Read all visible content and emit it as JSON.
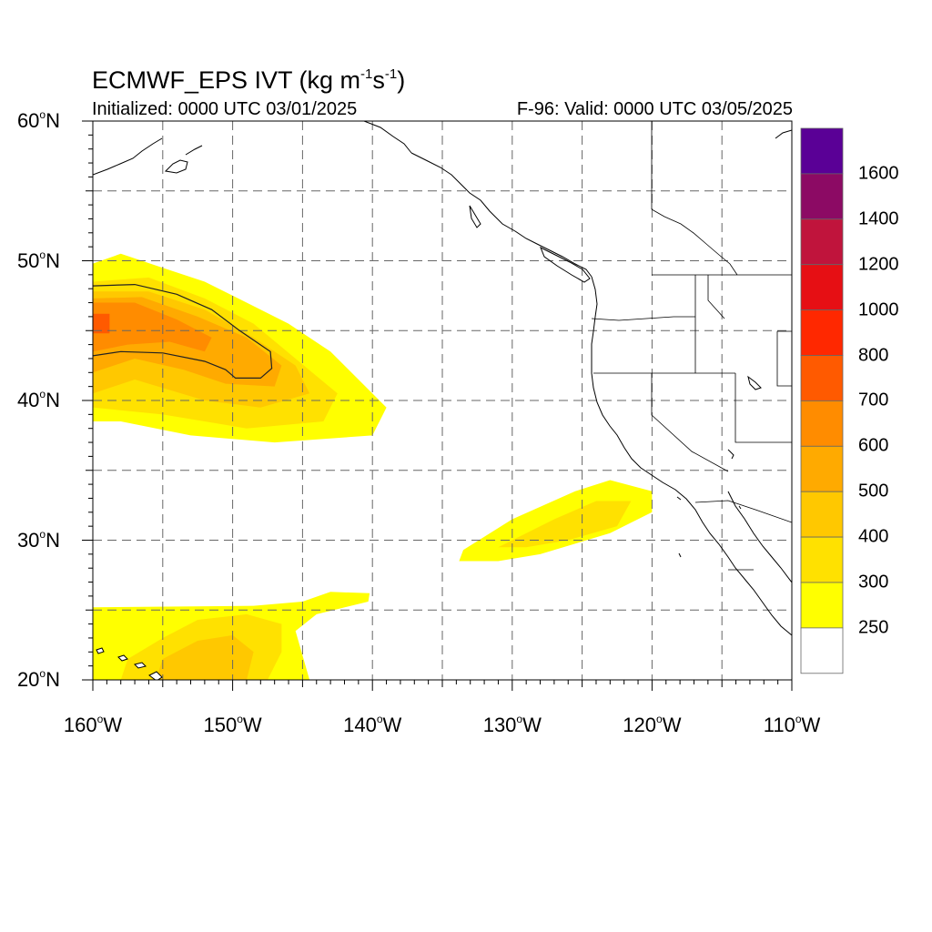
{
  "title": {
    "main": "ECMWF_EPS IVT (kg m",
    "sup1": "-1",
    "mid": "s",
    "sup2": "-1",
    "end": ")"
  },
  "initialized_text": "Initialized: 0000 UTC 03/01/2025",
  "valid_text": "F-96: Valid: 0000 UTC 03/05/2025",
  "map_extent": {
    "lon_min": -160,
    "lon_max": -110,
    "lat_min": 20,
    "lat_max": 60
  },
  "lat_ticks": [
    {
      "value": 60,
      "num": "60",
      "hemi": "N"
    },
    {
      "value": 50,
      "num": "50",
      "hemi": "N"
    },
    {
      "value": 40,
      "num": "40",
      "hemi": "N"
    },
    {
      "value": 30,
      "num": "30",
      "hemi": "N"
    },
    {
      "value": 20,
      "num": "20",
      "hemi": "N"
    }
  ],
  "lon_ticks": [
    {
      "value": -160,
      "num": "160",
      "hemi": "W"
    },
    {
      "value": -150,
      "num": "150",
      "hemi": "W"
    },
    {
      "value": -140,
      "num": "140",
      "hemi": "W"
    },
    {
      "value": -130,
      "num": "130",
      "hemi": "W"
    },
    {
      "value": -120,
      "num": "120",
      "hemi": "W"
    },
    {
      "value": -110,
      "num": "110",
      "hemi": "W"
    }
  ],
  "colorbar": {
    "levels": [
      250,
      300,
      400,
      500,
      600,
      700,
      800,
      1000,
      1200,
      1400,
      1600
    ],
    "labels": [
      "250",
      "300",
      "400",
      "500",
      "600",
      "700",
      "800",
      "1000",
      "1200",
      "1400",
      "1600"
    ],
    "colors": [
      "#ffffff",
      "#ffff00",
      "#ffe100",
      "#ffc800",
      "#ffaa00",
      "#ff8c00",
      "#ff5a00",
      "#ff2800",
      "#e60f14",
      "#c0143c",
      "#8c0a64",
      "#5a0096"
    ]
  },
  "chart_data": {
    "type": "heatmap",
    "variable": "IVT",
    "units": "kg m-1 s-1",
    "contour_line_level": 600,
    "ivt_regions": [
      {
        "description": "North Pacific atmospheric river",
        "bands": [
          {
            "min_ivt": 250,
            "polygon": [
              [
                -160,
                38.5
              ],
              [
                -160,
                49.8
              ],
              [
                -158,
                50.5
              ],
              [
                -155,
                49.5
              ],
              [
                -152,
                48.5
              ],
              [
                -149,
                47
              ],
              [
                -146,
                45.5
              ],
              [
                -143,
                43.5
              ],
              [
                -140.5,
                41
              ],
              [
                -139,
                39.5
              ],
              [
                -140,
                37.5
              ],
              [
                -147,
                37
              ],
              [
                -153,
                37.5
              ],
              [
                -158,
                38.5
              ]
            ]
          },
          {
            "min_ivt": 300,
            "polygon": [
              [
                -160,
                39.5
              ],
              [
                -160,
                48.5
              ],
              [
                -156,
                48.8
              ],
              [
                -152,
                47.3
              ],
              [
                -148.5,
                45.5
              ],
              [
                -145.5,
                43
              ],
              [
                -142.5,
                40.5
              ],
              [
                -143.5,
                38.5
              ],
              [
                -149,
                38
              ],
              [
                -155,
                39
              ]
            ]
          },
          {
            "min_ivt": 400,
            "polygon": [
              [
                -160,
                40.5
              ],
              [
                -160,
                47.8
              ],
              [
                -156,
                47.8
              ],
              [
                -152,
                46.5
              ],
              [
                -148.5,
                44.5
              ],
              [
                -145.5,
                42.5
              ],
              [
                -144.5,
                40.5
              ],
              [
                -148,
                39.5
              ],
              [
                -152,
                40
              ],
              [
                -157,
                41.5
              ]
            ]
          },
          {
            "min_ivt": 500,
            "polygon": [
              [
                -160,
                42
              ],
              [
                -160,
                47.3
              ],
              [
                -156.5,
                47.4
              ],
              [
                -152.5,
                46
              ],
              [
                -149,
                44.5
              ],
              [
                -146.5,
                42.5
              ],
              [
                -147,
                41
              ],
              [
                -150.5,
                41.2
              ],
              [
                -153.5,
                42.2
              ],
              [
                -157,
                43
              ]
            ]
          },
          {
            "min_ivt": 600,
            "polygon": [
              [
                -160,
                43.5
              ],
              [
                -160,
                47
              ],
              [
                -157,
                47
              ],
              [
                -154,
                45.8
              ],
              [
                -151.5,
                44.5
              ],
              [
                -152,
                43.5
              ],
              [
                -154.5,
                44.2
              ],
              [
                -157.5,
                44
              ]
            ]
          },
          {
            "min_ivt": 700,
            "polygon": [
              [
                -160,
                44.8
              ],
              [
                -160,
                46.2
              ],
              [
                -158.8,
                46.2
              ],
              [
                -158.8,
                44.8
              ]
            ]
          }
        ],
        "contour": [
          [
            -160,
            48.2
          ],
          [
            -157,
            48.3
          ],
          [
            -154,
            47.6
          ],
          [
            -151.5,
            46.5
          ],
          [
            -149.5,
            45
          ],
          [
            -147.3,
            43.5
          ],
          [
            -147.2,
            42.3
          ],
          [
            -148,
            41.6
          ],
          [
            -149.8,
            41.6
          ],
          [
            -150.5,
            42.2
          ],
          [
            -152,
            42.8
          ],
          [
            -155,
            43.4
          ],
          [
            -158,
            43.5
          ],
          [
            -160,
            43.2
          ]
        ]
      },
      {
        "description": "Subtropical moisture plume west of Baja California",
        "bands": [
          {
            "min_ivt": 250,
            "polygon": [
              [
                -133.8,
                28.5
              ],
              [
                -133.5,
                29.3
              ],
              [
                -130,
                31.5
              ],
              [
                -125.5,
                33.5
              ],
              [
                -123,
                34.3
              ],
              [
                -120,
                33.5
              ],
              [
                -120,
                32
              ],
              [
                -123,
                30.5
              ],
              [
                -128,
                29
              ],
              [
                -131,
                28.5
              ]
            ]
          },
          {
            "min_ivt": 300,
            "polygon": [
              [
                -131,
                29.5
              ],
              [
                -127,
                31.5
              ],
              [
                -124,
                32.8
              ],
              [
                -121.5,
                32.8
              ],
              [
                -122.5,
                31
              ],
              [
                -126,
                30
              ],
              [
                -129,
                29.5
              ]
            ]
          }
        ]
      },
      {
        "description": "Tropical moisture near Hawaii",
        "bands": [
          {
            "min_ivt": 250,
            "polygon": [
              [
                -160,
                20
              ],
              [
                -160,
                25.2
              ],
              [
                -148.5,
                25.3
              ],
              [
                -145,
                25.6
              ],
              [
                -143,
                26.3
              ],
              [
                -140.2,
                26.2
              ],
              [
                -140.3,
                25.6
              ],
              [
                -144,
                24.7
              ],
              [
                -145.5,
                23.5
              ],
              [
                -144.5,
                20
              ]
            ]
          },
          {
            "min_ivt": 300,
            "polygon": [
              [
                -158,
                20
              ],
              [
                -157.5,
                21.5
              ],
              [
                -155,
                23
              ],
              [
                -152.5,
                24.3
              ],
              [
                -149,
                24.7
              ],
              [
                -146.5,
                24
              ],
              [
                -146.5,
                22
              ],
              [
                -147.5,
                20
              ]
            ]
          },
          {
            "min_ivt": 400,
            "polygon": [
              [
                -155.5,
                20
              ],
              [
                -155,
                21.5
              ],
              [
                -152.5,
                22.8
              ],
              [
                -150,
                23.2
              ],
              [
                -148.5,
                22
              ],
              [
                -149,
                20
              ]
            ]
          }
        ]
      }
    ]
  }
}
